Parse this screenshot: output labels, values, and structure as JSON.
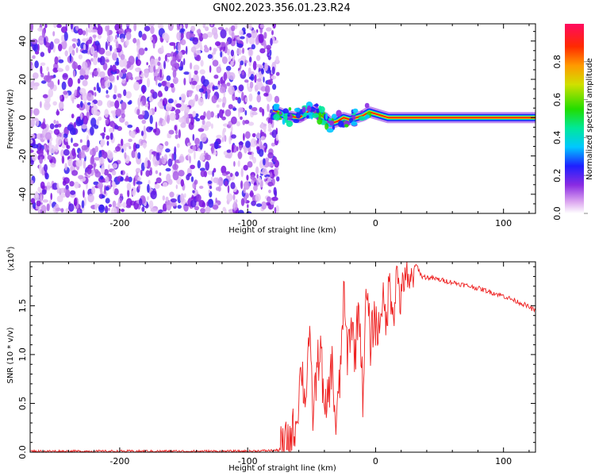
{
  "title": "GN02.2023.356.01.23.R24",
  "chart_data": [
    {
      "type": "heatmap",
      "xlabel": "Height of straight line (km)",
      "ylabel": "Frequency (Hz)",
      "xlim": [
        -270,
        125
      ],
      "ylim": [
        -50,
        49
      ],
      "xticks": [
        -200,
        -100,
        0,
        100
      ],
      "yticks": [
        -40,
        -20,
        0,
        20,
        40
      ],
      "noise_region_x": [
        -270,
        -80
      ],
      "signal_ridge": {
        "x": [
          -80,
          -70,
          -60,
          -50,
          -40,
          -35,
          -30,
          -25,
          -20,
          -10,
          -5,
          0,
          5,
          10,
          20,
          40,
          60,
          80,
          100,
          125
        ],
        "y": [
          4,
          1,
          0,
          4,
          0,
          -3,
          -2,
          0,
          -1,
          1,
          3,
          2,
          1,
          0,
          0,
          0,
          0,
          0,
          0,
          0
        ]
      },
      "colorbar": {
        "label": "Normalized spectral amplitude",
        "ticks": [
          0.0,
          0.2,
          0.4,
          0.6,
          0.8
        ],
        "tick_labels": [
          "0.0",
          "0.2",
          "0.4",
          "0.6",
          "0.8"
        ],
        "range": [
          0,
          1
        ]
      }
    },
    {
      "type": "line",
      "xlabel": "Height of straight line (km)",
      "ylabel": "SNR (10 * v/v)",
      "scale_label": "(x10",
      "scale_exp": "4",
      "scale_close": ")",
      "xlim": [
        -270,
        125
      ],
      "ylim": [
        0,
        1.95
      ],
      "xticks": [
        -200,
        -100,
        0,
        100
      ],
      "yticks": [
        0.0,
        0.5,
        1.0,
        1.5
      ],
      "ytick_labels": [
        "0.0",
        "0.5",
        "1.0",
        "1.5"
      ],
      "series": [
        {
          "color": "#ee2222",
          "x": [
            -270,
            -200,
            -100,
            -75,
            -68,
            -62,
            -58,
            -55,
            -52,
            -49,
            -46,
            -43,
            -40,
            -37,
            -34,
            -31,
            -28,
            -25,
            -22,
            -19,
            -16,
            -13,
            -10,
            -7,
            -4,
            -1,
            2,
            5,
            8,
            11,
            14,
            17,
            20,
            23,
            26,
            29,
            32,
            36,
            45,
            60,
            80,
            100,
            115,
            125
          ],
          "y": [
            0.01,
            0.01,
            0.01,
            0.02,
            0.1,
            0.3,
            0.9,
            0.5,
            1.2,
            0.4,
            0.8,
            1.15,
            0.3,
            0.6,
            0.9,
            0.25,
            0.7,
            1.6,
            1.0,
            1.35,
            1.0,
            1.55,
            0.6,
            1.65,
            1.1,
            1.4,
            1.2,
            1.6,
            1.3,
            1.75,
            1.45,
            1.85,
            1.5,
            1.9,
            1.6,
            1.85,
            1.92,
            1.8,
            1.78,
            1.74,
            1.68,
            1.6,
            1.52,
            1.45
          ]
        }
      ]
    }
  ]
}
